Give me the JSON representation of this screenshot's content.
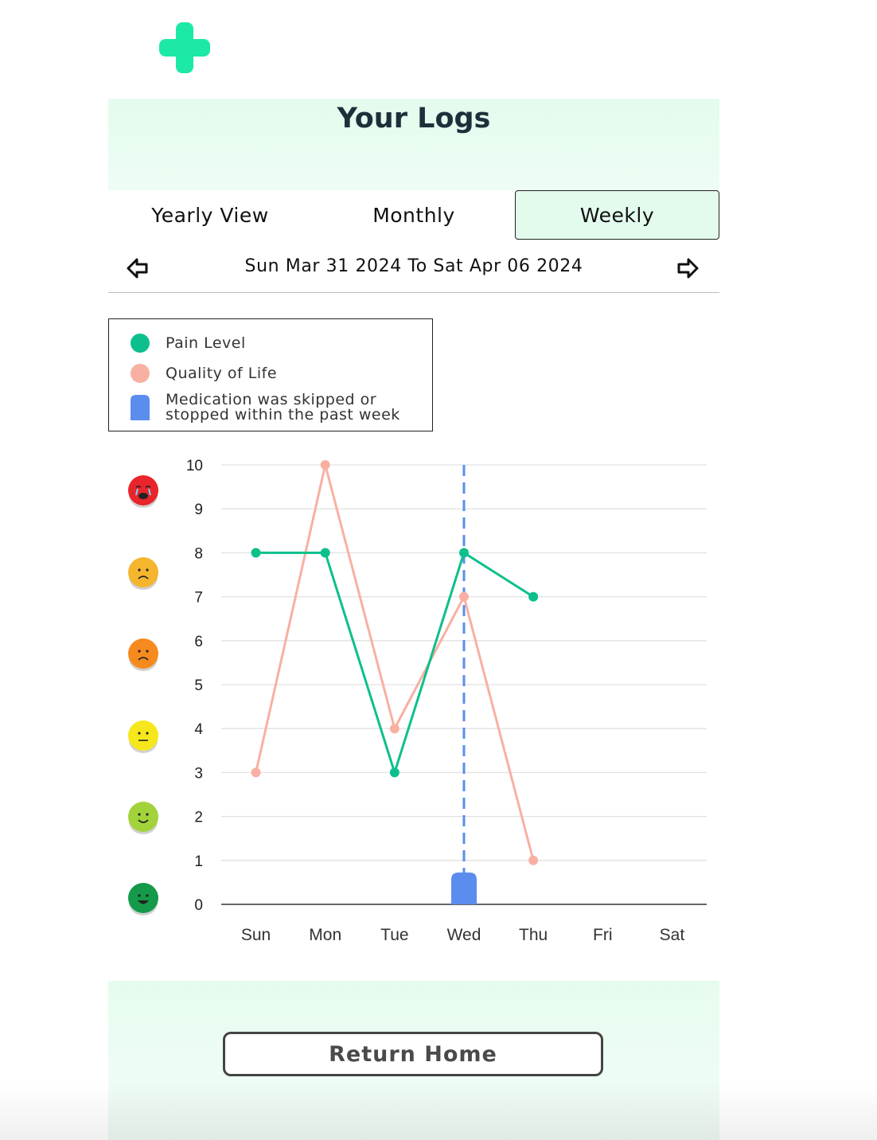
{
  "app": {
    "logo_icon": "green-cross-icon",
    "accent_color": "#1de9a6",
    "header_bg": "#e3fbed"
  },
  "header": {
    "title": "Your Logs"
  },
  "tabs": [
    {
      "label": "Yearly View",
      "active": false
    },
    {
      "label": "Monthly",
      "active": false
    },
    {
      "label": "Weekly",
      "active": true
    }
  ],
  "week_nav": {
    "range_text": "Sun Mar 31 2024 To Sat Apr 06 2024",
    "prev_icon": "arrow-left-icon",
    "next_icon": "arrow-right-icon"
  },
  "legend": {
    "items": [
      {
        "label": "Pain Level",
        "color": "#0dbf8c",
        "shape": "circle"
      },
      {
        "label": "Quality of Life",
        "color": "#f8b0a2",
        "shape": "circle"
      },
      {
        "label": "Medication was skipped or stopped within the past week",
        "line1": "Medication was skipped or",
        "line2": "stopped within the past week",
        "color": "#5b8def",
        "shape": "rounded-bar"
      }
    ]
  },
  "mood_scale_icons": [
    {
      "name": "crying-face-icon",
      "color": "#e8252b"
    },
    {
      "name": "sad-face-icon",
      "color": "#f5b52d"
    },
    {
      "name": "sad-face-icon",
      "color": "#f68a1f"
    },
    {
      "name": "neutral-face-icon",
      "color": "#f5e71b"
    },
    {
      "name": "smile-face-icon",
      "color": "#a3d33a"
    },
    {
      "name": "happy-face-icon",
      "color": "#149a49"
    }
  ],
  "chart_data": {
    "type": "line",
    "categories": [
      "Sun",
      "Mon",
      "Tue",
      "Wed",
      "Thu",
      "Fri",
      "Sat"
    ],
    "ylim": [
      0,
      10
    ],
    "yticks": [
      0,
      1,
      2,
      3,
      4,
      5,
      6,
      7,
      8,
      9,
      10
    ],
    "grid": true,
    "series": [
      {
        "name": "Pain Level",
        "color": "#0dbf8c",
        "values": [
          8,
          8,
          3,
          8,
          7,
          null,
          null
        ]
      },
      {
        "name": "Quality of Life",
        "color": "#f8b0a2",
        "values": [
          3,
          10,
          4,
          7,
          1,
          null,
          null
        ]
      }
    ],
    "medication_skipped": {
      "category": "Wed",
      "color": "#5b8def"
    }
  },
  "footer": {
    "return_home_label": "Return Home"
  }
}
